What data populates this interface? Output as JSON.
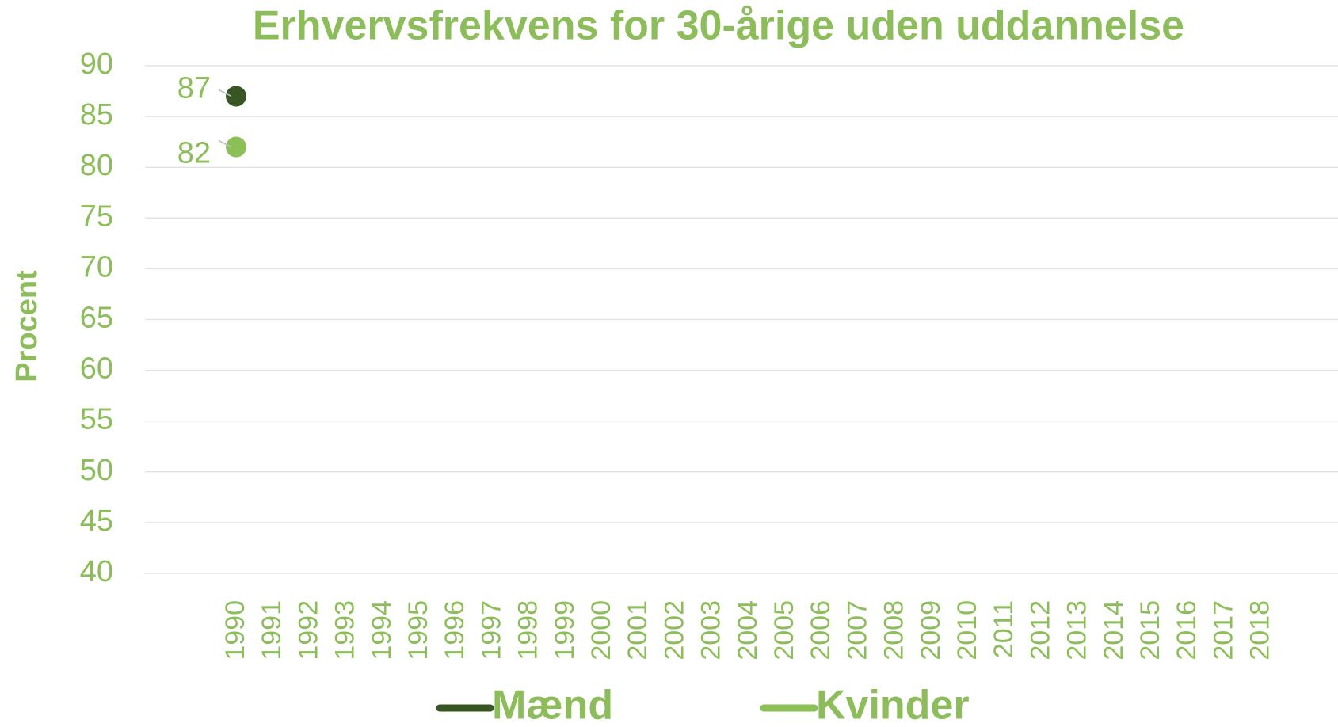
{
  "chart_data": {
    "type": "line",
    "title": "Erhvervsfrekvens for 30-årige uden uddannelse",
    "y_label": "Procent",
    "categories": [
      "1990",
      "1991",
      "1992",
      "1993",
      "1994",
      "1995",
      "1996",
      "1997",
      "1998",
      "1999",
      "2000",
      "2001",
      "2002",
      "2003",
      "2004",
      "2005",
      "2006",
      "2007",
      "2008",
      "2009",
      "2010",
      "2011",
      "2012",
      "2013",
      "2014",
      "2015",
      "2016",
      "2017",
      "2018"
    ],
    "series": [
      {
        "name": "Mænd",
        "color": "#375623",
        "values": [
          87,
          null,
          null,
          null,
          null,
          null,
          null,
          null,
          null,
          null,
          null,
          null,
          null,
          null,
          null,
          null,
          null,
          null,
          null,
          null,
          null,
          null,
          null,
          null,
          null,
          null,
          null,
          null,
          null
        ]
      },
      {
        "name": "Kvinder",
        "color": "#8cbf56",
        "values": [
          82,
          null,
          null,
          null,
          null,
          null,
          null,
          null,
          null,
          null,
          null,
          null,
          null,
          null,
          null,
          null,
          null,
          null,
          null,
          null,
          null,
          null,
          null,
          null,
          null,
          null,
          null,
          null,
          null
        ]
      }
    ],
    "ylim": [
      40,
      90
    ],
    "yticks": [
      40,
      45,
      50,
      55,
      60,
      65,
      70,
      75,
      80,
      85,
      90
    ],
    "grid": true,
    "legend": "bottom",
    "data_labels": true
  }
}
